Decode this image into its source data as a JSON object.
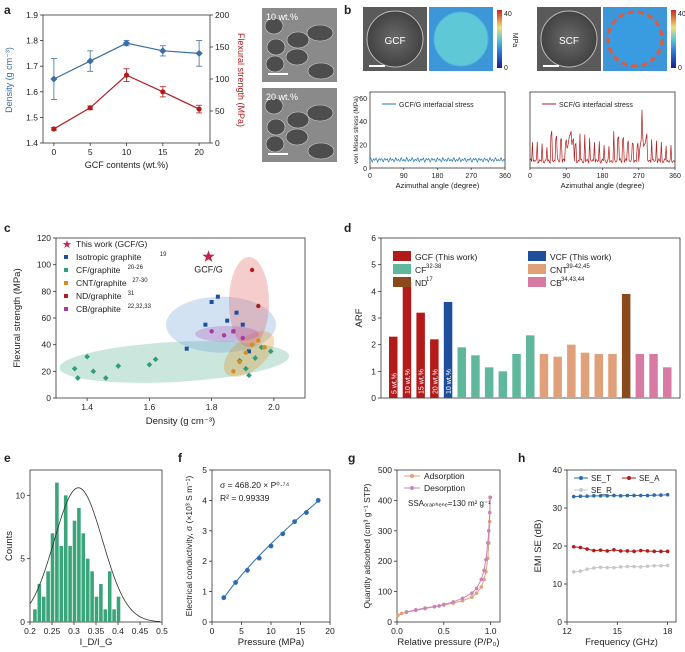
{
  "panel_labels": [
    "a",
    "b",
    "c",
    "d",
    "e",
    "f",
    "g",
    "h"
  ],
  "colors": {
    "blue": "#3a6ea5",
    "red": "#b31b1b",
    "green": "#2e9e78",
    "orange": "#d98c1e",
    "purple": "#a53aa5",
    "teal": "#5fb89c",
    "brown": "#8b4a1c",
    "tan": "#e0a07a",
    "pink": "#d97aa5",
    "navy": "#1f4e9c"
  },
  "images": {
    "a_top": "10 wt.%",
    "a_bottom": "20 wt.%",
    "b_left": "GCF",
    "b_right": "SCF",
    "b_unit": "MPa",
    "b_cbar_max": "40",
    "b_cbar_min": "0"
  },
  "chart_data": [
    {
      "id": "a",
      "type": "line",
      "xlabel": "GCF contents (wt.%)",
      "ylabel_left": "Density (g cm⁻³)",
      "ylabel_right": "Flexural strength (MPa)",
      "x": [
        0,
        5,
        10,
        15,
        20
      ],
      "xticks": [
        "0",
        "5",
        "10",
        "15",
        "20"
      ],
      "series": [
        {
          "name": "Density",
          "axis": "left",
          "values": [
            1.65,
            1.72,
            1.79,
            1.76,
            1.75
          ],
          "err": [
            0.08,
            0.04,
            0.01,
            0.02,
            0.05
          ]
        },
        {
          "name": "Flexural strength",
          "axis": "right",
          "values": [
            22,
            55,
            106,
            80,
            53
          ],
          "err": [
            2,
            3,
            10,
            8,
            6
          ]
        }
      ],
      "ylim_left": [
        1.4,
        1.9
      ],
      "yticks_left": [
        "1.4",
        "1.5",
        "1.6",
        "1.7",
        "1.8",
        "1.9"
      ],
      "ylim_right": [
        0,
        200
      ],
      "yticks_right": [
        "0",
        "50",
        "100",
        "150",
        "200"
      ]
    },
    {
      "id": "b",
      "type": "line",
      "ylabel": "von Mises stress (MPa)",
      "xlabel": "Azimuthal angle (degree)",
      "xticks": [
        "0",
        "90",
        "180",
        "270",
        "360"
      ],
      "yticks": [
        "0",
        "20",
        "40",
        "60"
      ],
      "series": [
        {
          "name": "GCF/G interfacial stress",
          "level": 7
        },
        {
          "name": "SCF/G interfacial stress",
          "level": 6
        }
      ]
    },
    {
      "id": "c",
      "type": "scatter",
      "xlabel": "Density (g cm⁻³)",
      "ylabel": "Flexural strength (MPa)",
      "xlim": [
        1.3,
        2.1
      ],
      "ylim": [
        0,
        120
      ],
      "xticks": [
        "1.4",
        "1.6",
        "1.8",
        "2.0"
      ],
      "yticks": [
        "0",
        "20",
        "40",
        "60",
        "80",
        "100",
        "120"
      ],
      "legend": [
        "This work (GCF/G)",
        "Isotropic graphite",
        "CF/graphite",
        "CNT/graphite",
        "ND/graphite",
        "CB/graphite"
      ],
      "legend_refs": [
        "",
        "19",
        "20-26",
        "27-30",
        "31",
        "22,32,33"
      ],
      "annotation": "GCF/G",
      "star": {
        "x": 1.79,
        "y": 106
      },
      "groups": [
        {
          "name": "Isotropic graphite",
          "points": [
            [
              1.72,
              37
            ],
            [
              1.78,
              55
            ],
            [
              1.8,
              72
            ],
            [
              1.82,
              76
            ],
            [
              1.85,
              58
            ],
            [
              1.87,
              50
            ],
            [
              1.88,
              64
            ],
            [
              1.9,
              55
            ],
            [
              1.92,
              35
            ]
          ]
        },
        {
          "name": "CF/graphite",
          "points": [
            [
              1.36,
              22
            ],
            [
              1.37,
              15
            ],
            [
              1.4,
              31
            ],
            [
              1.42,
              20
            ],
            [
              1.46,
              15
            ],
            [
              1.5,
              24
            ],
            [
              1.6,
              25
            ],
            [
              1.62,
              29
            ],
            [
              1.89,
              28
            ],
            [
              1.91,
              22
            ],
            [
              1.92,
              17
            ],
            [
              1.94,
              30
            ],
            [
              1.96,
              38
            ],
            [
              1.99,
              35
            ]
          ]
        },
        {
          "name": "CNT/graphite",
          "points": [
            [
              1.87,
              20
            ],
            [
              1.89,
              27
            ],
            [
              1.91,
              34
            ],
            [
              1.93,
              40
            ],
            [
              1.95,
              43
            ],
            [
              1.97,
              38
            ]
          ]
        },
        {
          "name": "ND/graphite",
          "points": [
            [
              1.93,
              96
            ],
            [
              1.95,
              69
            ]
          ]
        },
        {
          "name": "CB/graphite",
          "points": [
            [
              1.8,
              50
            ],
            [
              1.84,
              47
            ],
            [
              1.87,
              50
            ],
            [
              1.9,
              45
            ]
          ]
        }
      ]
    },
    {
      "id": "d",
      "type": "bar",
      "ylabel": "ARF",
      "ylim": [
        0,
        6
      ],
      "yticks": [
        "0",
        "1",
        "2",
        "3",
        "4",
        "5",
        "6"
      ],
      "legend": [
        "GCF (This work)",
        "VCF (This work)",
        "CF",
        "CNT",
        "ND",
        "CB"
      ],
      "legend_refs": [
        "",
        "",
        "32-38",
        "39-42,45",
        "17",
        "34,43,44"
      ],
      "bar_labels": [
        "5 wt.%",
        "10 wt.%",
        "15 wt.%",
        "20 wt.%",
        "10 wt.%"
      ],
      "groups": [
        {
          "name": "GCF",
          "values": [
            2.3,
            4.35,
            3.2,
            2.2
          ]
        },
        {
          "name": "VCF",
          "values": [
            3.6
          ]
        },
        {
          "name": "CF",
          "values": [
            1.9,
            1.6,
            1.15,
            1.0,
            1.65,
            2.35
          ]
        },
        {
          "name": "CNT",
          "values": [
            1.65,
            1.55,
            2.0,
            1.7,
            1.65,
            1.65
          ]
        },
        {
          "name": "ND",
          "values": [
            3.9
          ]
        },
        {
          "name": "CB",
          "values": [
            1.65,
            1.65,
            1.15
          ]
        }
      ]
    },
    {
      "id": "e",
      "type": "bar",
      "xlabel": "I_D/I_G",
      "ylabel": "Counts",
      "xlim": [
        0.2,
        0.5
      ],
      "ylim": [
        0,
        12
      ],
      "xticks": [
        "0.2",
        "0.25",
        "0.3",
        "0.35",
        "0.4",
        "0.45",
        "0.5"
      ],
      "yticks": [
        "0",
        "5",
        "10"
      ],
      "bin_start": 0.21,
      "bin_width": 0.01,
      "values": [
        1,
        3,
        2,
        4,
        7,
        11,
        6,
        10,
        6,
        8,
        9,
        7,
        5,
        4,
        2,
        3,
        1,
        4,
        1,
        2
      ],
      "fit": {
        "mean": 0.31,
        "sd": 0.055,
        "peak": 10.6
      }
    },
    {
      "id": "f",
      "type": "scatter",
      "xlabel": "Pressure (MPa)",
      "ylabel": "Electrical conductivity, σ (×10³ S m⁻¹)",
      "xlim": [
        0,
        20
      ],
      "ylim": [
        0,
        5
      ],
      "xticks": [
        "0",
        "5",
        "10",
        "15",
        "20"
      ],
      "yticks": [
        "0",
        "1",
        "2",
        "3",
        "4",
        "5"
      ],
      "x": [
        2,
        4,
        6,
        8,
        10,
        12,
        14,
        16,
        18
      ],
      "y": [
        0.8,
        1.3,
        1.7,
        2.1,
        2.5,
        2.9,
        3.3,
        3.6,
        4.0
      ],
      "equation": "σ = 468.20 × P⁰·⁷⁴",
      "r2": "R² = 0.99339"
    },
    {
      "id": "g",
      "type": "line",
      "xlabel": "Relative pressure (P/P₀)",
      "ylabel": "Quantity adsorbed (cm³ g⁻¹ STP)",
      "xlim": [
        0,
        1.1
      ],
      "ylim": [
        0,
        500
      ],
      "xticks": [
        "0.0",
        "0.5",
        "1.0"
      ],
      "yticks": [
        "0",
        "100",
        "200",
        "300",
        "400",
        "500"
      ],
      "ssa": "SSAₒᵣₐₚₕₑₙₑ=130 m² g⁻¹",
      "series": [
        {
          "name": "Adsorption",
          "x": [
            0.01,
            0.05,
            0.1,
            0.2,
            0.3,
            0.4,
            0.5,
            0.6,
            0.7,
            0.8,
            0.85,
            0.9,
            0.93,
            0.95,
            0.97,
            0.98,
            0.99,
            0.995
          ],
          "y": [
            22,
            28,
            32,
            38,
            44,
            50,
            56,
            62,
            70,
            82,
            95,
            115,
            140,
            165,
            210,
            260,
            330,
            410
          ]
        },
        {
          "name": "Desorption",
          "x": [
            0.995,
            0.99,
            0.98,
            0.97,
            0.95,
            0.93,
            0.9,
            0.85,
            0.8,
            0.7,
            0.6,
            0.5,
            0.45,
            0.4,
            0.3,
            0.2,
            0.1
          ],
          "y": [
            410,
            360,
            300,
            260,
            205,
            170,
            140,
            110,
            95,
            78,
            66,
            58,
            53,
            51,
            46,
            40,
            33
          ]
        }
      ]
    },
    {
      "id": "h",
      "type": "line",
      "xlabel": "Frequency (GHz)",
      "ylabel": "EMI SE (dB)",
      "xlim": [
        12,
        18.5
      ],
      "ylim": [
        0,
        40
      ],
      "xticks": [
        "12",
        "15",
        "18"
      ],
      "yticks": [
        "0",
        "10",
        "20",
        "30",
        "40"
      ],
      "legend": [
        "SE_T",
        "SE_A",
        "SE_R"
      ],
      "x": [
        12.4,
        12.8,
        13.2,
        13.6,
        14.0,
        14.4,
        14.8,
        15.2,
        15.6,
        16.0,
        16.4,
        16.8,
        17.2,
        17.6,
        18.0
      ],
      "series": [
        {
          "name": "SE_T",
          "values": [
            33.0,
            33.1,
            33.1,
            33.2,
            33.2,
            33.2,
            33.3,
            33.2,
            33.3,
            33.3,
            33.3,
            33.3,
            33.4,
            33.4,
            33.5
          ]
        },
        {
          "name": "SE_A",
          "values": [
            19.8,
            19.6,
            19.2,
            18.8,
            18.9,
            18.7,
            19.0,
            18.7,
            18.7,
            18.6,
            18.8,
            18.7,
            18.6,
            18.6,
            18.6
          ]
        },
        {
          "name": "SE_R",
          "values": [
            13.2,
            13.4,
            13.9,
            14.2,
            14.4,
            14.3,
            14.3,
            14.5,
            14.6,
            14.6,
            14.5,
            14.7,
            14.8,
            14.8,
            14.9
          ]
        }
      ]
    }
  ]
}
